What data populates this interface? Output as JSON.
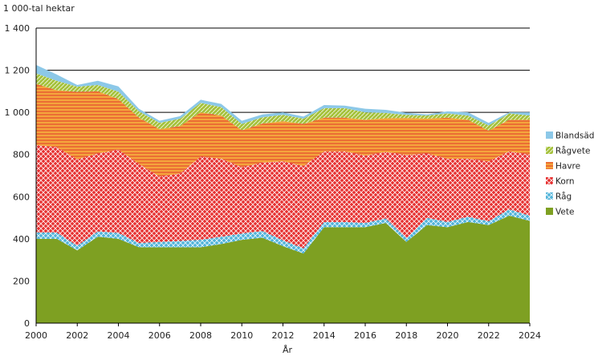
{
  "chart_data": {
    "type": "area",
    "stacked": true,
    "ylabel": "1 000-tal hektar",
    "xlabel": "År",
    "x": [
      2000,
      2001,
      2002,
      2003,
      2004,
      2005,
      2006,
      2007,
      2008,
      2009,
      2010,
      2011,
      2012,
      2013,
      2014,
      2015,
      2016,
      2017,
      2018,
      2019,
      2020,
      2021,
      2022,
      2023,
      2024
    ],
    "xticks": [
      "2000",
      "2002",
      "2004",
      "2006",
      "2008",
      "2010",
      "2012",
      "2014",
      "2016",
      "2018",
      "2020",
      "2022",
      "2024"
    ],
    "yticks": [
      "0",
      "200",
      "400",
      "600",
      "800",
      "1 000",
      "1 200",
      "1 400"
    ],
    "ylim": [
      0,
      1400
    ],
    "gridlines": [
      1000,
      1200,
      1400
    ],
    "series": [
      {
        "name": "Vete",
        "color": "#7ea022",
        "pattern": "solid",
        "values": [
          400,
          400,
          345,
          410,
          400,
          360,
          360,
          360,
          360,
          375,
          395,
          405,
          365,
          330,
          455,
          455,
          455,
          475,
          385,
          465,
          455,
          480,
          465,
          510,
          485
        ]
      },
      {
        "name": "Råg",
        "color": "#4fb3d9",
        "pattern": "crosshatch",
        "values": [
          30,
          30,
          22,
          25,
          28,
          20,
          25,
          30,
          35,
          35,
          30,
          32,
          28,
          25,
          25,
          25,
          20,
          22,
          18,
          35,
          25,
          25,
          18,
          30,
          25
        ]
      },
      {
        "name": "Korn",
        "color": "#e63030",
        "pattern": "crosshatch",
        "values": [
          415,
          405,
          410,
          370,
          395,
          375,
          310,
          320,
          395,
          370,
          315,
          325,
          375,
          390,
          335,
          335,
          320,
          315,
          395,
          305,
          300,
          275,
          285,
          275,
          290
        ]
      },
      {
        "name": "Havre",
        "color": "#f4a53c",
        "pattern": "horizontal-lines",
        "values": [
          290,
          270,
          320,
          295,
          240,
          220,
          225,
          225,
          210,
          205,
          175,
          185,
          190,
          200,
          160,
          160,
          170,
          160,
          175,
          165,
          195,
          185,
          145,
          150,
          165
        ]
      },
      {
        "name": "Rågvete",
        "color": "#a5c23c",
        "pattern": "diagonal-hatch",
        "values": [
          50,
          45,
          25,
          30,
          35,
          30,
          30,
          35,
          45,
          40,
          30,
          30,
          30,
          25,
          45,
          45,
          35,
          25,
          15,
          15,
          20,
          20,
          25,
          30,
          20
        ]
      },
      {
        "name": "Blandsäd",
        "color": "#8cc8e8",
        "pattern": "solid",
        "values": [
          40,
          30,
          8,
          20,
          25,
          12,
          10,
          12,
          15,
          15,
          15,
          13,
          12,
          10,
          15,
          12,
          17,
          15,
          10,
          5,
          10,
          15,
          12,
          5,
          15
        ]
      }
    ],
    "legend": [
      "Blandsäd",
      "Rågvete",
      "Havre",
      "Korn",
      "Råg",
      "Vete"
    ],
    "legend_position": "right"
  }
}
